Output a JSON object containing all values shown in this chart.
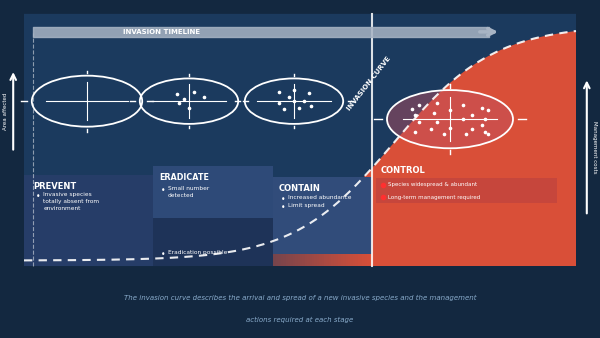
{
  "bg_color": "#132840",
  "main_area_color": "#1b3a5e",
  "red_color": "#d94f38",
  "light_gray": "#a8b4c4",
  "bullet_red": "#e05040",
  "timeline_label": "INVASION TIMELINE",
  "curve_label": "INVASION CURVE",
  "prevent_title": "PREVENT",
  "eradicate_title": "ERADICATE",
  "contain_title": "CONTAIN",
  "control_title": "CONTROL",
  "prevent_bullet": "Invasive species\ntotally absent from\nenvironment",
  "eradicate_bullet1": "Small number\ndetected",
  "eradicate_bullet2": "Eradication possible",
  "contain_bullet1": "Increased abundance",
  "contain_bullet2": "Limit spread",
  "control_bullet1": "Species widespread & abundant",
  "control_bullet2": "Long-term management required",
  "area_label": "Area affected",
  "mgmt_label": "Management costs",
  "caption_line1": "The invasion curve describes the arrival and spread of a new invasive species and the management",
  "caption_line2": "actions required at each stage"
}
